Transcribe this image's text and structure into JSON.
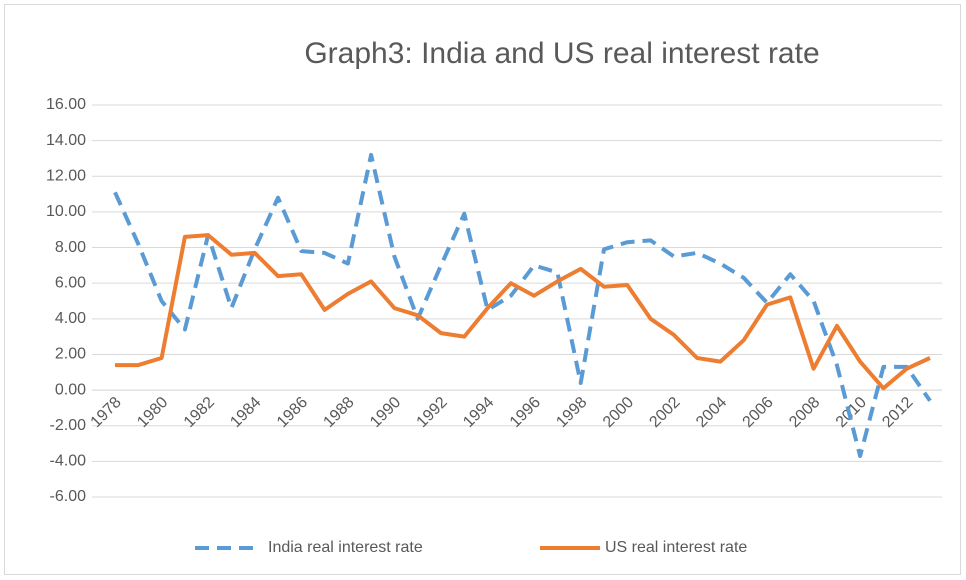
{
  "chart_data": {
    "type": "line",
    "title": "Graph3: India and US real interest rate",
    "categories": [
      "1978",
      null,
      "1980",
      null,
      "1982",
      null,
      "1984",
      null,
      "1986",
      null,
      "1988",
      null,
      "1990",
      null,
      "1992",
      null,
      "1994",
      null,
      "1996",
      null,
      "1998",
      null,
      "2000",
      null,
      "2002",
      null,
      "2004",
      null,
      "2006",
      null,
      "2008",
      null,
      "2010",
      null,
      "2012",
      null
    ],
    "series": [
      {
        "name": "India real interest rate",
        "color": "#5b9bd5",
        "line_style": "dashed",
        "values": [
          11.1,
          8.2,
          5.0,
          3.4,
          8.7,
          4.6,
          7.9,
          10.8,
          7.8,
          7.7,
          7.1,
          13.2,
          7.5,
          4.0,
          7.0,
          9.9,
          4.5,
          5.3,
          7.0,
          6.6,
          0.4,
          7.9,
          8.3,
          8.4,
          7.5,
          7.7,
          7.1,
          6.3,
          4.9,
          6.5,
          5.0,
          1.4,
          -3.7,
          1.3,
          1.3,
          -0.6
        ]
      },
      {
        "name": "US real interest rate",
        "color": "#ed7d31",
        "line_style": "solid",
        "values": [
          1.4,
          1.4,
          1.8,
          8.6,
          8.7,
          7.6,
          7.7,
          6.4,
          6.5,
          4.5,
          5.4,
          6.1,
          4.6,
          4.2,
          3.2,
          3.0,
          4.6,
          6.0,
          5.3,
          6.1,
          6.8,
          5.8,
          5.9,
          4.0,
          3.1,
          1.8,
          1.6,
          2.8,
          4.8,
          5.2,
          1.2,
          3.6,
          1.6,
          0.1,
          1.2,
          1.8
        ]
      }
    ],
    "ylim": [
      -6,
      16
    ],
    "yticks": [
      {
        "value": -6,
        "label": "-6.00"
      },
      {
        "value": -4,
        "label": "-4.00"
      },
      {
        "value": -2,
        "label": "-2.00"
      },
      {
        "value": 0,
        "label": "0.00"
      },
      {
        "value": 2,
        "label": "2.00"
      },
      {
        "value": 4,
        "label": "4.00"
      },
      {
        "value": 6,
        "label": "6.00"
      },
      {
        "value": 8,
        "label": "8.00"
      },
      {
        "value": 10,
        "label": "10.00"
      },
      {
        "value": 12,
        "label": "12.00"
      },
      {
        "value": 14,
        "label": "14.00"
      },
      {
        "value": 16,
        "label": "16.00"
      }
    ],
    "grid": true,
    "legend": "bottom"
  }
}
